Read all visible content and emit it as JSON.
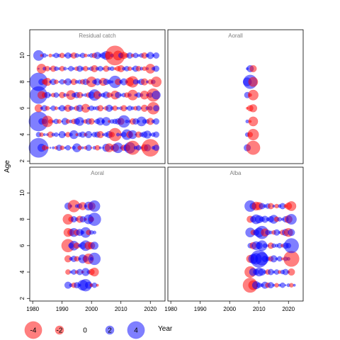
{
  "chart_data": {
    "type": "scatter",
    "subtype": "bubble-residual-lattice",
    "xlabel": "Year",
    "ylabel": "Age",
    "xlim": [
      1979,
      2025
    ],
    "ylim": [
      1.8,
      11.2
    ],
    "x_ticks": [
      1980,
      1990,
      2000,
      2010,
      2020
    ],
    "x_tick_labels": [
      "1980",
      "1990",
      "2000",
      "2010",
      "2020"
    ],
    "y_ticks": [
      2,
      4,
      6,
      8,
      10
    ],
    "y_tick_labels": [
      "2",
      "4",
      "6",
      "8",
      "10"
    ],
    "colors": {
      "positive": "#0000FF",
      "negative": "#FF0000",
      "panel_title": "#808080"
    },
    "legend": {
      "placement": "bottom-left",
      "values": [
        -4,
        -2,
        0,
        2,
        4
      ],
      "labels": [
        "-4",
        "-2",
        "0",
        "2",
        "4"
      ]
    },
    "panels": [
      {
        "title": "Residual catch",
        "years": [
          1982,
          1983,
          1984,
          1985,
          1986,
          1987,
          1988,
          1989,
          1990,
          1991,
          1992,
          1993,
          1994,
          1995,
          1996,
          1997,
          1998,
          1999,
          2000,
          2001,
          2002,
          2003,
          2004,
          2005,
          2006,
          2007,
          2008,
          2009,
          2010,
          2011,
          2012,
          2013,
          2014,
          2015,
          2016,
          2017,
          2018,
          2019,
          2020,
          2021,
          2022
        ],
        "ages": [
          3,
          4,
          5,
          6,
          7,
          8,
          9,
          10
        ],
        "residuals": [
          [
            4.5,
            1.8,
            -1.2,
            -0.6,
            0.4,
            0.6,
            -0.8,
            1.4,
            -1.0,
            0.5,
            1.2,
            -0.4,
            0.8,
            2.0,
            -1.0,
            0.6,
            -0.8,
            1.4,
            -0.4,
            0.8,
            -1.2,
            0.6,
            0.4,
            1.8,
            -2.0,
            1.0,
            -1.8,
            2.4,
            0.6,
            -1.4,
            1.6,
            2.6,
            -3.2,
            0.8,
            1.2,
            0.6,
            -1.6,
            1.6,
            -4.0,
            0.8,
            1.4
          ],
          [
            1.2,
            -1.0,
            0.6,
            0.6,
            -1.4,
            0.8,
            1.0,
            0.4,
            1.6,
            0.6,
            -1.2,
            0.8,
            2.0,
            -0.6,
            1.0,
            1.4,
            -0.8,
            1.6,
            0.4,
            1.2,
            1.4,
            -1.6,
            0.6,
            1.0,
            1.6,
            -1.2,
            -3.0,
            0.8,
            0.6,
            1.2,
            2.4,
            -1.6,
            2.0,
            0.4,
            -1.4,
            1.0,
            1.4,
            1.8,
            0.6,
            1.0,
            1.4
          ],
          [
            4.5,
            1.4,
            1.2,
            -2.6,
            -1.0,
            0.6,
            1.2,
            -1.0,
            0.4,
            1.6,
            -1.0,
            0.8,
            -1.2,
            1.4,
            2.0,
            0.6,
            -1.0,
            1.4,
            -1.4,
            0.4,
            1.2,
            1.8,
            0.8,
            2.0,
            -0.6,
            1.0,
            1.2,
            1.4,
            -1.6,
            2.8,
            0.8,
            0.6,
            -1.4,
            1.4,
            0.6,
            2.2,
            1.0,
            1.0,
            -1.6,
            0.8,
            1.4
          ],
          [
            -1.8,
            0.6,
            1.4,
            -1.0,
            0.4,
            1.2,
            -0.8,
            0.6,
            1.4,
            0.8,
            -1.6,
            1.0,
            0.6,
            -1.2,
            1.6,
            0.4,
            -2.0,
            0.6,
            1.2,
            0.8,
            1.0,
            -1.4,
            0.4,
            -1.0,
            1.6,
            0.8,
            -1.2,
            0.6,
            0.8,
            -1.4,
            0.6,
            1.2,
            0.8,
            -1.0,
            1.2,
            0.4,
            -1.6,
            0.8,
            1.0,
            -2.8,
            1.4
          ],
          [
            4.0,
            -1.8,
            -1.2,
            1.4,
            0.6,
            -1.0,
            1.2,
            0.4,
            -1.4,
            0.8,
            0.6,
            -2.2,
            1.0,
            1.4,
            -1.4,
            0.6,
            0.8,
            -1.2,
            1.6,
            2.6,
            -1.8,
            0.8,
            1.0,
            1.6,
            -1.2,
            0.6,
            -2.0,
            1.4,
            0.6,
            1.0,
            -1.2,
            0.8,
            -2.4,
            0.6,
            1.2,
            0.8,
            -2.0,
            0.6,
            1.2,
            -3.0,
            2.0
          ],
          [
            4.2,
            1.4,
            -1.2,
            -1.8,
            0.6,
            1.4,
            -1.0,
            0.4,
            1.2,
            -0.8,
            1.6,
            0.6,
            -1.4,
            0.8,
            1.0,
            -1.2,
            1.4,
            0.6,
            -2.4,
            1.0,
            1.6,
            0.8,
            -1.8,
            1.4,
            1.0,
            0.6,
            2.8,
            -1.4,
            0.8,
            1.6,
            0.6,
            -2.0,
            -2.6,
            1.2,
            0.8,
            1.4,
            -1.6,
            0.6,
            -1.2,
            1.0,
            -2.4
          ],
          [
            0.4,
            -2.2,
            0.8,
            -1.2,
            0.6,
            -1.4,
            1.0,
            0.6,
            -1.2,
            0.8,
            0.4,
            1.2,
            0.6,
            -1.0,
            1.4,
            0.8,
            -1.2,
            0.6,
            1.0,
            -1.6,
            0.8,
            1.2,
            0.6,
            -1.4,
            0.8,
            1.0,
            -0.6,
            -1.2,
            -1.6,
            0.8,
            1.2,
            -1.0,
            0.6,
            1.4,
            -1.2,
            0.8,
            -1.0,
            0.6,
            -2.2,
            0.8,
            1.4
          ],
          [
            2.4,
            -0.6,
            1.0,
            0.4,
            -0.8,
            0.6,
            1.2,
            0.8,
            -1.2,
            0.6,
            1.4,
            0.8,
            -1.4,
            1.0,
            0.6,
            1.2,
            -0.8,
            0.6,
            1.0,
            -1.2,
            1.6,
            0.8,
            1.4,
            2.0,
            -1.8,
            0.8,
            -4.5,
            -2.2,
            1.2,
            -1.6,
            -1.0,
            1.4,
            -0.8,
            1.2,
            0.6,
            1.0,
            -1.4,
            0.8,
            1.6,
            0.6,
            1.4
          ]
        ]
      },
      {
        "title": "Aorall",
        "years": [
          2006,
          2007,
          2008
        ],
        "ages": [
          3,
          4,
          5,
          6,
          7,
          8,
          9
        ],
        "residuals": [
          [
            1.6,
            0.0,
            -3.2
          ],
          [
            1.0,
            -1.2,
            -2.6
          ],
          [
            0.8,
            -0.6,
            -2.2
          ],
          [
            -0.6,
            -1.4,
            -1.8
          ],
          [
            1.4,
            -0.8,
            -2.4
          ],
          [
            2.0,
            3.2,
            -2.2
          ],
          [
            0.6,
            1.6,
            -1.6
          ]
        ]
      },
      {
        "title": "Aoral",
        "years": [
          1992,
          1993,
          1994,
          1995,
          1996,
          1997,
          1998,
          1999,
          2000,
          2001,
          2002
        ],
        "ages": [
          3,
          4,
          5,
          6,
          7,
          8,
          9
        ],
        "residuals": [
          [
            1.6,
            0.8,
            -1.2,
            1.4,
            0.6,
            2.4,
            2.8,
            1.6,
            -0.8,
            1.2,
            -0.6
          ],
          [
            -1.2,
            0.6,
            1.2,
            -0.8,
            1.4,
            -0.6,
            1.8,
            0.8,
            -1.4,
            -2.0,
            0.0
          ],
          [
            -1.6,
            0.8,
            1.4,
            -1.2,
            0.6,
            2.0,
            1.4,
            -2.4,
            0.8,
            2.8,
            0.0
          ],
          [
            -3.0,
            1.2,
            2.2,
            -1.4,
            0.8,
            1.6,
            2.4,
            -1.8,
            -1.6,
            1.8,
            0.0
          ],
          [
            -2.0,
            -1.6,
            2.0,
            -1.4,
            1.6,
            0.8,
            2.4,
            -1.2,
            1.0,
            0.8,
            0.0
          ],
          [
            -2.4,
            -1.2,
            1.4,
            0.8,
            -1.6,
            1.4,
            -0.6,
            2.2,
            -1.2,
            3.0,
            0.0
          ],
          [
            1.6,
            0.6,
            -2.8,
            0.8,
            1.2,
            -1.8,
            0.6,
            2.0,
            -1.8,
            2.6,
            0.0
          ]
        ]
      },
      {
        "title": "Alba",
        "years": [
          2007,
          2008,
          2009,
          2010,
          2011,
          2012,
          2013,
          2014,
          2015,
          2016,
          2017,
          2018,
          2019,
          2020,
          2021,
          2022
        ],
        "ages": [
          3,
          4,
          5,
          6,
          7,
          8,
          9
        ],
        "residuals": [
          [
            -3.4,
            -2.2,
            1.8,
            1.2,
            0.8,
            1.6,
            -1.2,
            1.4,
            0.6,
            -1.0,
            0.6,
            1.2,
            0.4,
            0.8,
            -1.0,
            0.6
          ],
          [
            -2.6,
            1.8,
            1.4,
            2.0,
            1.6,
            0.8,
            -1.2,
            1.4,
            0.6,
            1.2,
            -0.8,
            1.0,
            1.4,
            0.6,
            -1.6,
            0.0
          ],
          [
            -1.8,
            2.2,
            2.6,
            4.0,
            3.0,
            1.4,
            1.0,
            -1.2,
            1.6,
            0.6,
            1.2,
            -0.6,
            1.0,
            0.8,
            -3.6,
            0.0
          ],
          [
            1.2,
            -1.6,
            2.0,
            1.6,
            2.4,
            1.0,
            0.6,
            -1.4,
            1.0,
            0.8,
            1.2,
            -0.8,
            1.4,
            1.2,
            3.4,
            0.0
          ],
          [
            2.2,
            -1.2,
            1.4,
            2.2,
            3.0,
            -1.8,
            1.2,
            0.8,
            -1.0,
            1.4,
            0.6,
            -1.2,
            1.6,
            -2.0,
            1.6,
            0.0
          ],
          [
            -1.6,
            1.4,
            2.2,
            1.8,
            1.2,
            1.6,
            0.8,
            1.4,
            2.0,
            -1.2,
            1.0,
            0.6,
            1.4,
            -1.8,
            2.4,
            0.0
          ],
          [
            2.6,
            1.6,
            -2.0,
            -1.8,
            1.4,
            0.8,
            1.2,
            -1.4,
            0.6,
            -1.0,
            0.8,
            1.4,
            -0.8,
            -1.6,
            -2.2,
            0.0
          ]
        ]
      }
    ]
  }
}
